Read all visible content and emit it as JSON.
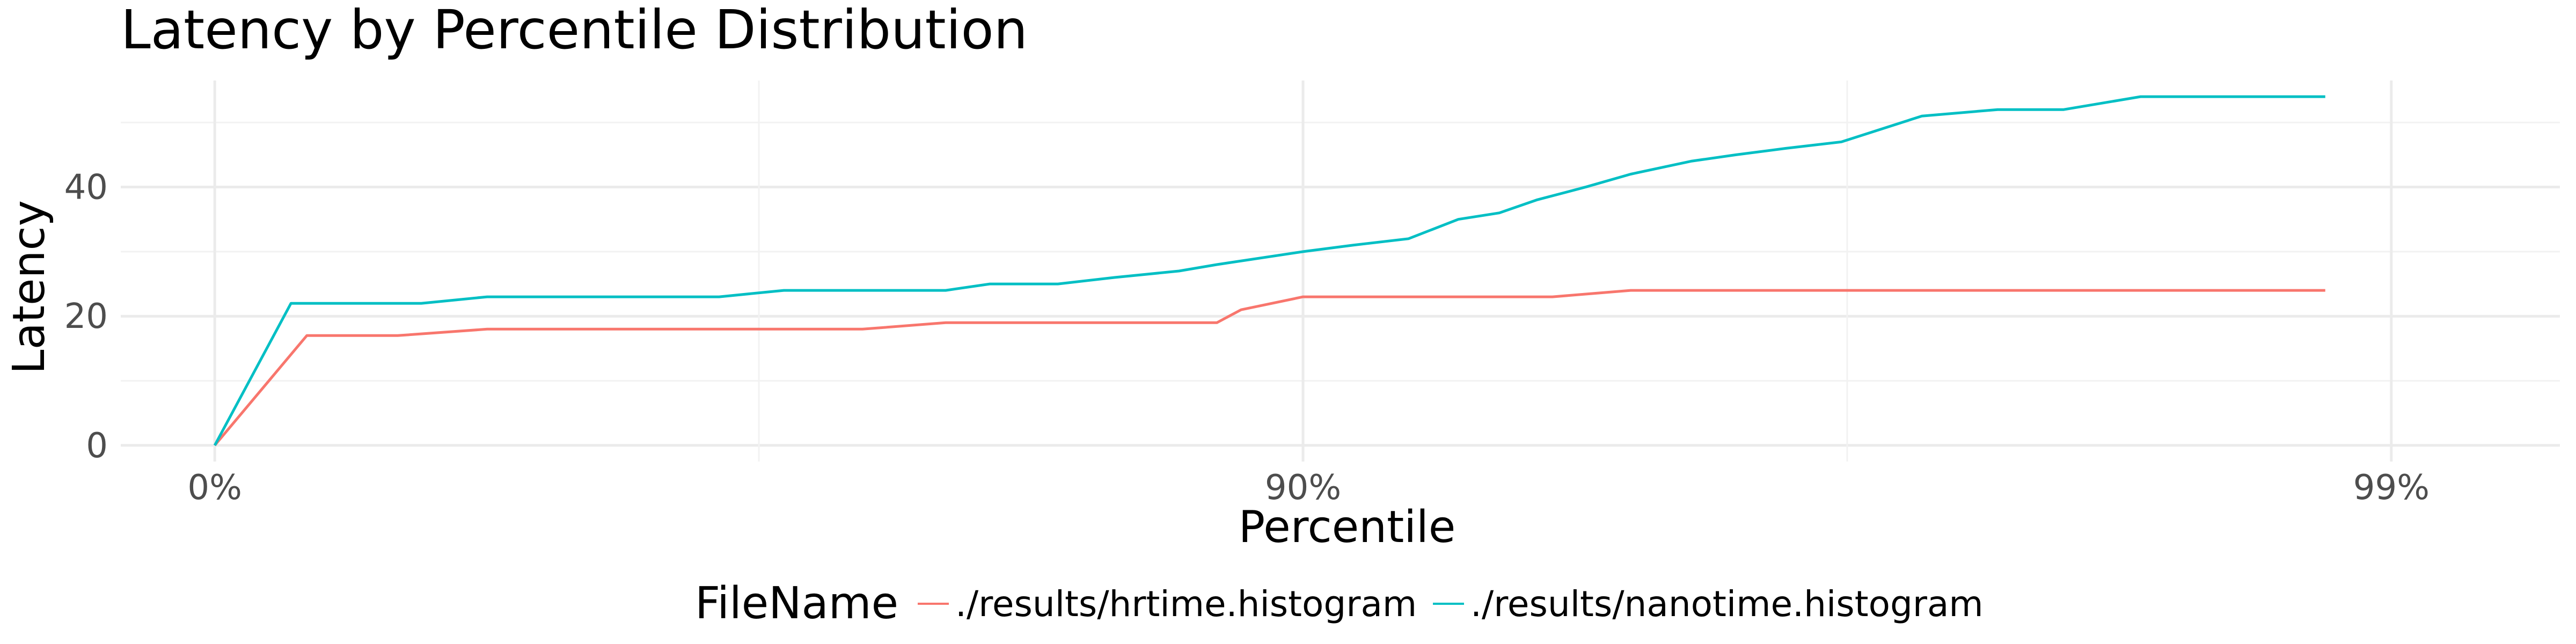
{
  "chart_data": {
    "type": "line",
    "title": "Latency by Percentile Distribution",
    "xlabel": "Percentile",
    "ylabel": "Latency",
    "x_scale": "inverse-percentile (log of 1/(1-p))",
    "x_ticks": [
      {
        "value": 0,
        "label": "0%"
      },
      {
        "value": 90,
        "label": "90%"
      },
      {
        "value": 99,
        "label": "99%"
      }
    ],
    "y_ticks": [
      {
        "value": 0,
        "label": "0"
      },
      {
        "value": 20,
        "label": "20"
      },
      {
        "value": 40,
        "label": "40"
      }
    ],
    "xlim": [
      -22,
      99.3
    ],
    "ylim": [
      -2.5,
      56.5
    ],
    "grid": true,
    "legend": {
      "title": "FileName",
      "position": "bottom"
    },
    "series": [
      {
        "name": "./results/hrtime.histogram",
        "color": "#F8766D",
        "points": [
          [
            0,
            0
          ],
          [
            17.7,
            17
          ],
          [
            32.1,
            17
          ],
          [
            43.8,
            18
          ],
          [
            53.7,
            18
          ],
          [
            61.9,
            18
          ],
          [
            68.8,
            18
          ],
          [
            74.6,
            18
          ],
          [
            78.7,
            19
          ],
          [
            81.2,
            19
          ],
          [
            83.5,
            19
          ],
          [
            85.5,
            19
          ],
          [
            87.0,
            19
          ],
          [
            88.0,
            19
          ],
          [
            88.6,
            21
          ],
          [
            90.0,
            23
          ],
          [
            91.6,
            23
          ],
          [
            93.0,
            23
          ],
          [
            94.1,
            23
          ],
          [
            95.0,
            24
          ],
          [
            95.6,
            24
          ],
          [
            96.2,
            24
          ],
          [
            96.8,
            24
          ],
          [
            97.3,
            24
          ],
          [
            97.7,
            24
          ],
          [
            98.0,
            24
          ],
          [
            98.3,
            24
          ],
          [
            98.6,
            24
          ],
          [
            98.85,
            24
          ]
        ]
      },
      {
        "name": "./results/nanotime.histogram",
        "color": "#00BFC4",
        "points": [
          [
            0,
            0
          ],
          [
            14.9,
            22
          ],
          [
            24.3,
            22
          ],
          [
            35.4,
            22
          ],
          [
            43.8,
            23
          ],
          [
            53.7,
            23
          ],
          [
            65.6,
            23
          ],
          [
            70.0,
            24
          ],
          [
            76.0,
            24
          ],
          [
            78.7,
            24
          ],
          [
            80.6,
            25
          ],
          [
            83.2,
            25
          ],
          [
            85.1,
            26
          ],
          [
            87.0,
            27
          ],
          [
            88.0,
            28
          ],
          [
            90.0,
            30
          ],
          [
            91.0,
            31
          ],
          [
            92.0,
            32
          ],
          [
            92.8,
            35
          ],
          [
            93.4,
            36
          ],
          [
            93.9,
            38
          ],
          [
            94.5,
            40
          ],
          [
            95.0,
            42
          ],
          [
            95.6,
            44
          ],
          [
            96.0,
            45
          ],
          [
            96.4,
            46
          ],
          [
            96.8,
            47
          ],
          [
            97.3,
            51
          ],
          [
            97.7,
            52
          ],
          [
            98.0,
            52
          ],
          [
            98.3,
            54
          ],
          [
            98.6,
            54
          ],
          [
            98.85,
            54
          ]
        ]
      }
    ]
  }
}
